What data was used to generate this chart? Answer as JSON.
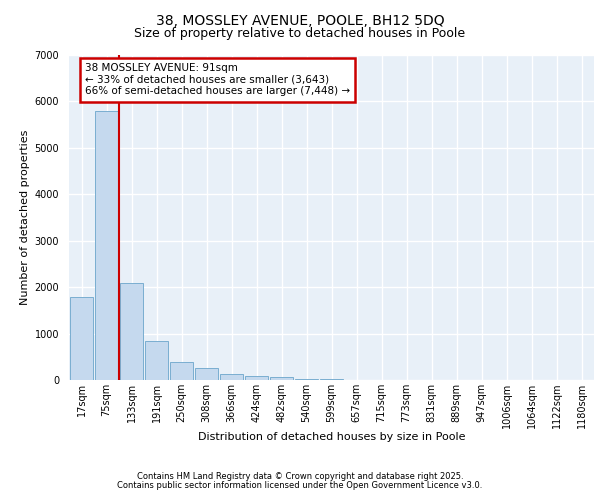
{
  "title1": "38, MOSSLEY AVENUE, POOLE, BH12 5DQ",
  "title2": "Size of property relative to detached houses in Poole",
  "xlabel": "Distribution of detached houses by size in Poole",
  "ylabel": "Number of detached properties",
  "categories": [
    "17sqm",
    "75sqm",
    "133sqm",
    "191sqm",
    "250sqm",
    "308sqm",
    "366sqm",
    "424sqm",
    "482sqm",
    "540sqm",
    "599sqm",
    "657sqm",
    "715sqm",
    "773sqm",
    "831sqm",
    "889sqm",
    "947sqm",
    "1006sqm",
    "1064sqm",
    "1122sqm",
    "1180sqm"
  ],
  "values": [
    1780,
    5800,
    2080,
    830,
    380,
    250,
    120,
    80,
    55,
    30,
    15,
    8,
    5,
    0,
    0,
    0,
    0,
    0,
    0,
    0,
    0
  ],
  "bar_color": "#c5d9ee",
  "bar_edge_color": "#7aaed0",
  "vline_color": "#cc0000",
  "vline_x": 1.5,
  "annotation_title": "38 MOSSLEY AVENUE: 91sqm",
  "annotation_line2": "← 33% of detached houses are smaller (3,643)",
  "annotation_line3": "66% of semi-detached houses are larger (7,448) →",
  "annotation_box_color": "#cc0000",
  "annotation_bg": "#ffffff",
  "bg_color": "#e8f0f8",
  "grid_color": "#ffffff",
  "footer1": "Contains HM Land Registry data © Crown copyright and database right 2025.",
  "footer2": "Contains public sector information licensed under the Open Government Licence v3.0.",
  "ylim": [
    0,
    7000
  ],
  "yticks": [
    0,
    1000,
    2000,
    3000,
    4000,
    5000,
    6000,
    7000
  ],
  "title1_fontsize": 10,
  "title2_fontsize": 9,
  "axis_label_fontsize": 8,
  "tick_fontsize": 7,
  "annotation_fontsize": 7.5,
  "footer_fontsize": 6
}
